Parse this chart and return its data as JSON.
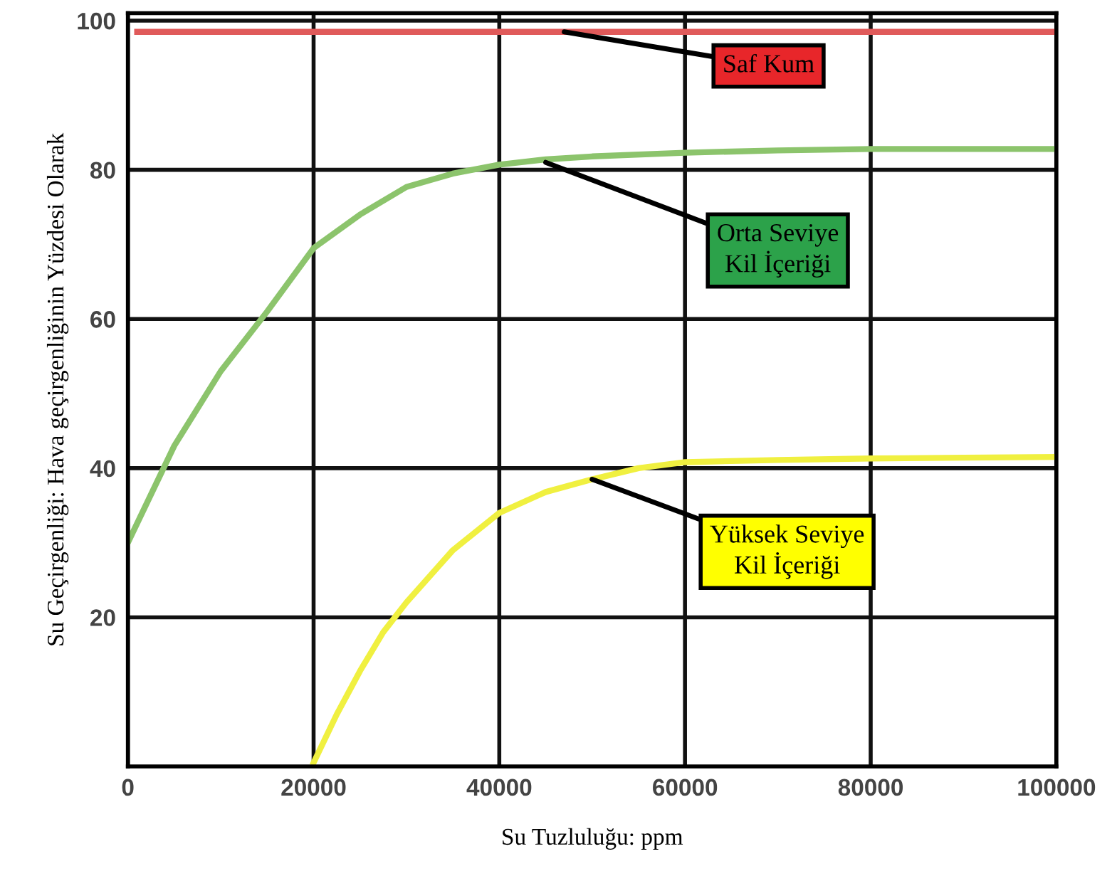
{
  "chart_data": {
    "type": "line",
    "xlabel": "Su Tuzluluğu: ppm",
    "ylabel": "Su Geçirgenliği: Hava geçirgenliğinin Yüzdesi Olarak",
    "xlim": [
      0,
      100000
    ],
    "ylim": [
      0,
      101
    ],
    "xticks": [
      0,
      20000,
      40000,
      60000,
      80000,
      100000
    ],
    "yticks": [
      20,
      40,
      60,
      80,
      100
    ],
    "grid": true,
    "legend": false,
    "series": [
      {
        "color": "#e05a5a",
        "x": [
          1000,
          100000
        ],
        "values": [
          98.5,
          98.5
        ]
      },
      {
        "color": "#8cc46c",
        "x": [
          0,
          5000,
          10000,
          15000,
          20000,
          25000,
          30000,
          35000,
          40000,
          45000,
          50000,
          60000,
          70000,
          80000,
          90000,
          100000
        ],
        "values": [
          30,
          43,
          53,
          61,
          69.5,
          74,
          77.7,
          79.5,
          80.7,
          81.4,
          81.8,
          82.3,
          82.6,
          82.8,
          82.8,
          82.8
        ]
      },
      {
        "color": "#f0f040",
        "x": [
          20000,
          22500,
          25000,
          27500,
          30000,
          35000,
          40000,
          45000,
          50000,
          55000,
          60000,
          70000,
          80000,
          90000,
          100000
        ],
        "values": [
          0.5,
          7,
          12.8,
          18,
          22,
          29,
          34,
          36.8,
          38.5,
          40,
          40.8,
          41.1,
          41.3,
          41.4,
          41.5
        ]
      }
    ],
    "annotations": [
      {
        "text": "Saf Kum",
        "x": 47000,
        "y": 98.5
      },
      {
        "text": "Orta Seviye\nKil İçeriği",
        "x": 45000,
        "y": 81
      },
      {
        "text": "Yüksek Seviye\nKil İçeriği",
        "x": 50000,
        "y": 38.5
      }
    ]
  }
}
